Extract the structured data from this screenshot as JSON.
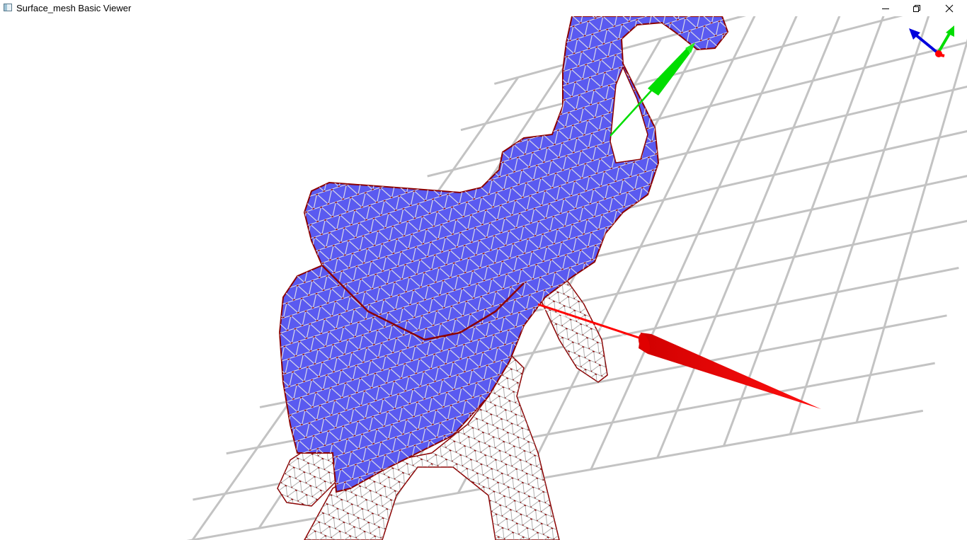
{
  "window": {
    "title": "Surface_mesh Basic Viewer",
    "controls": [
      "minimize-icon",
      "restore-icon",
      "close-icon"
    ]
  },
  "viewport": {
    "background": "#ffffff",
    "grid_color": "#c0c0c0",
    "mesh_face_color": "#5a5af0",
    "mesh_edge_color": "#e8e8e8",
    "vertex_color": "#8b0000",
    "axis_colors": {
      "x": "#ff0000",
      "y": "#00dd00",
      "z": "#0000dd"
    }
  }
}
